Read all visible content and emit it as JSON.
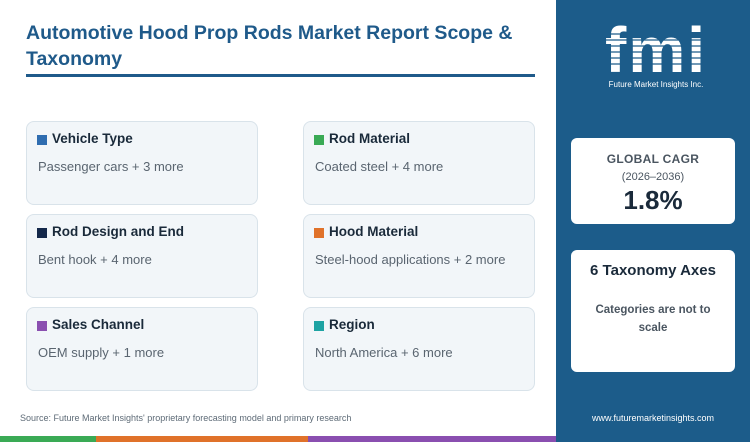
{
  "header": {
    "title": "Automotive Hood Prop Rods Market Report Scope & Taxonomy"
  },
  "cards": [
    {
      "title": "Vehicle Type",
      "value": "Passenger cars + 3 more",
      "color": "#2f6db0"
    },
    {
      "title": "Rod Material",
      "value": "Coated steel + 4 more",
      "color": "#3aaa55"
    },
    {
      "title": "Rod Design and End",
      "value": "Bent hook + 4 more",
      "color": "#14284a"
    },
    {
      "title": "Hood Material",
      "value": "Steel-hood applications + 2 more",
      "color": "#e0722a"
    },
    {
      "title": "Sales Channel",
      "value": "OEM supply + 1 more",
      "color": "#8a4fb0"
    },
    {
      "title": "Region",
      "value": "North America + 6 more",
      "color": "#1ea3a3"
    }
  ],
  "footer": {
    "source": "Source: Future Market Insights' proprietary forecasting model and primary research",
    "url": "www.futuremarketinsights.com"
  },
  "brand": {
    "logo_text": "fmi",
    "logo_sub": "Future Market Insights Inc."
  },
  "cagr": {
    "label": "GLOBAL CAGR",
    "period": "(2026–2036)",
    "value": "1.8%"
  },
  "axes": {
    "heading": "6 Taxonomy Axes",
    "note": "Categories are not to scale"
  },
  "colors": {
    "accent": "#1c5c8a",
    "bottom_bar": [
      "#3aaa55",
      "#e0722a",
      "#8a4fb0",
      "#1c5c8a"
    ]
  }
}
